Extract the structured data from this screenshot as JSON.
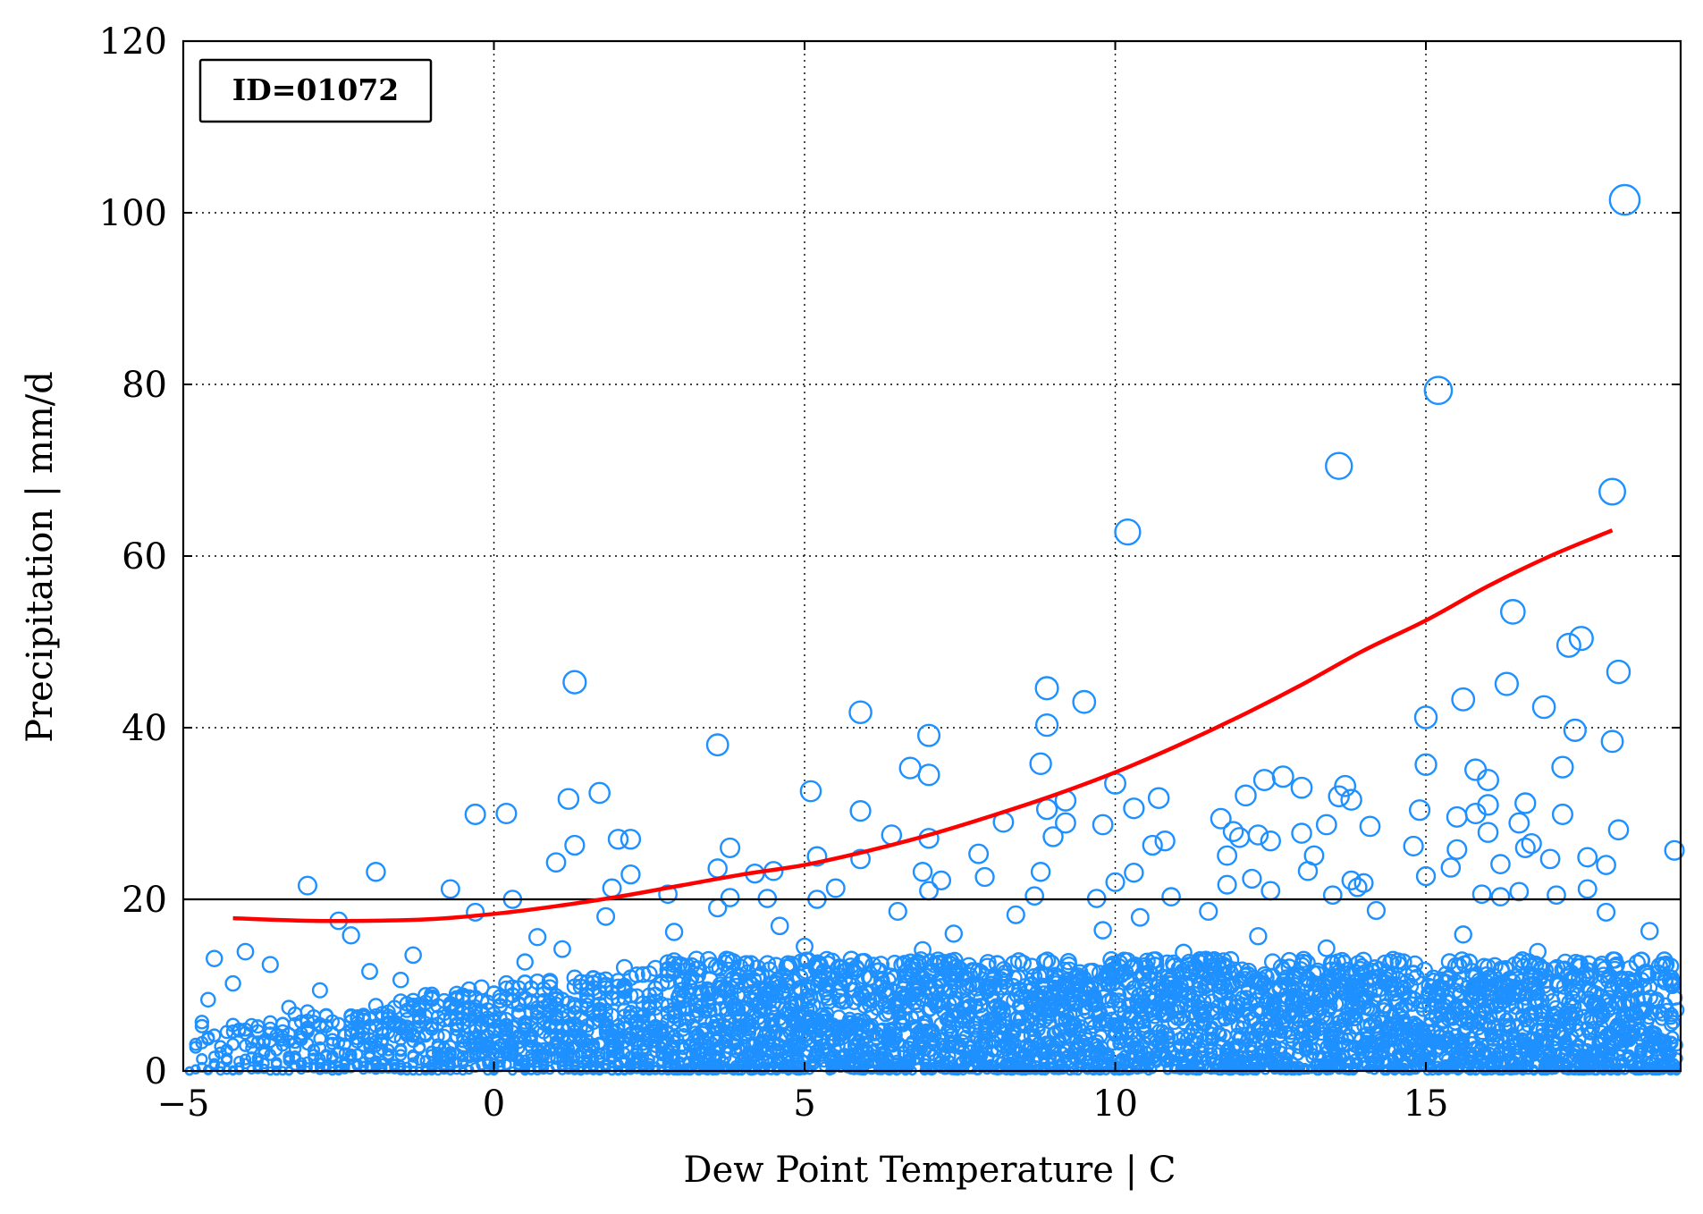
{
  "chart_data": {
    "type": "scatter",
    "title": "",
    "xlabel": "Dew Point Temperature | C",
    "ylabel": "Precipitation | mm/d",
    "xlim": [
      -5,
      19.1
    ],
    "ylim": [
      0,
      120
    ],
    "xticks": [
      -5,
      0,
      5,
      10,
      15
    ],
    "yticks": [
      0,
      20,
      40,
      60,
      80,
      100,
      120
    ],
    "x_tick_labels": [
      "−5",
      "0",
      "5",
      "10",
      "15"
    ],
    "y_tick_labels": [
      "0",
      "20",
      "40",
      "60",
      "80",
      "100",
      "120"
    ],
    "grid": true,
    "annotation": "ID=01072",
    "annotation_position": "top-left",
    "threshold_line": {
      "y": 20,
      "color": "#000000"
    },
    "marker_color": "#1E90FF",
    "fit_color": "#FF0000",
    "fit_curve": {
      "x": [
        -4.2,
        -3,
        -2,
        -1,
        0,
        1,
        2,
        3,
        4,
        5,
        6,
        7,
        8,
        9,
        10,
        11,
        12,
        13,
        14,
        15,
        16,
        17,
        18
      ],
      "y": [
        17.8,
        17.5,
        17.5,
        17.7,
        18.3,
        19.2,
        20.3,
        21.6,
        22.9,
        24.0,
        25.6,
        27.5,
        29.7,
        32.1,
        34.8,
        37.9,
        41.3,
        45.0,
        49.0,
        52.5,
        56.5,
        60.0,
        63.0
      ]
    },
    "series": [
      {
        "name": "",
        "points": [
          [
            18.2,
            101.5
          ],
          [
            15.2,
            79.3
          ],
          [
            13.6,
            70.5
          ],
          [
            18.0,
            67.5
          ],
          [
            10.2,
            62.8
          ],
          [
            16.4,
            53.5
          ],
          [
            17.5,
            50.4
          ],
          [
            17.3,
            49.6
          ],
          [
            18.1,
            46.5
          ],
          [
            1.3,
            45.3
          ],
          [
            16.3,
            45.1
          ],
          [
            8.9,
            44.6
          ],
          [
            15.6,
            43.3
          ],
          [
            9.5,
            43.0
          ],
          [
            16.9,
            42.4
          ],
          [
            5.9,
            41.8
          ],
          [
            15.0,
            41.2
          ],
          [
            8.9,
            40.3
          ],
          [
            17.4,
            39.7
          ],
          [
            7.0,
            39.1
          ],
          [
            18.0,
            38.4
          ],
          [
            3.6,
            38.0
          ],
          [
            8.8,
            35.8
          ],
          [
            6.7,
            35.3
          ],
          [
            15.0,
            35.7
          ],
          [
            17.2,
            35.4
          ],
          [
            15.8,
            35.1
          ],
          [
            7.0,
            34.5
          ],
          [
            12.7,
            34.3
          ],
          [
            16.0,
            33.9
          ],
          [
            12.4,
            33.9
          ],
          [
            13.7,
            33.2
          ],
          [
            10.0,
            33.5
          ],
          [
            5.1,
            32.6
          ],
          [
            13.0,
            33.0
          ],
          [
            1.7,
            32.4
          ],
          [
            12.1,
            32.1
          ],
          [
            10.7,
            31.8
          ],
          [
            1.2,
            31.7
          ],
          [
            13.6,
            32.0
          ],
          [
            13.8,
            31.6
          ],
          [
            9.2,
            31.5
          ],
          [
            16.6,
            31.2
          ],
          [
            16.0,
            31.0
          ],
          [
            10.3,
            30.6
          ],
          [
            8.9,
            30.5
          ],
          [
            15.8,
            30.0
          ],
          [
            5.9,
            30.3
          ],
          [
            14.9,
            30.4
          ],
          [
            0.2,
            30.0
          ],
          [
            -0.3,
            29.9
          ],
          [
            15.5,
            29.6
          ],
          [
            17.2,
            29.9
          ],
          [
            11.7,
            29.4
          ],
          [
            9.2,
            28.9
          ],
          [
            16.5,
            28.9
          ],
          [
            8.2,
            29.0
          ],
          [
            13.4,
            28.7
          ],
          [
            9.8,
            28.7
          ],
          [
            14.1,
            28.5
          ],
          [
            11.9,
            27.9
          ],
          [
            16.0,
            27.8
          ],
          [
            18.1,
            28.1
          ],
          [
            12.3,
            27.5
          ],
          [
            6.4,
            27.5
          ],
          [
            12.0,
            27.2
          ],
          [
            13.0,
            27.7
          ],
          [
            9.0,
            27.3
          ],
          [
            7.0,
            27.1
          ],
          [
            10.8,
            26.8
          ],
          [
            2.2,
            27.0
          ],
          [
            2.0,
            27.0
          ],
          [
            16.7,
            26.5
          ],
          [
            1.3,
            26.3
          ],
          [
            3.8,
            26.0
          ],
          [
            14.8,
            26.2
          ],
          [
            16.6,
            26.0
          ],
          [
            12.5,
            26.8
          ],
          [
            10.6,
            26.3
          ],
          [
            15.5,
            25.8
          ],
          [
            19.0,
            25.7
          ],
          [
            7.8,
            25.3
          ],
          [
            13.2,
            25.1
          ],
          [
            17.6,
            24.9
          ],
          [
            5.2,
            25.0
          ],
          [
            11.8,
            25.1
          ],
          [
            5.9,
            24.7
          ],
          [
            17.0,
            24.7
          ],
          [
            1.0,
            24.3
          ],
          [
            16.2,
            24.1
          ],
          [
            15.4,
            23.7
          ],
          [
            17.9,
            24.0
          ],
          [
            3.6,
            23.6
          ],
          [
            4.5,
            23.3
          ],
          [
            -1.9,
            23.2
          ],
          [
            6.9,
            23.2
          ],
          [
            10.3,
            23.1
          ],
          [
            4.2,
            23.0
          ],
          [
            8.8,
            23.2
          ],
          [
            13.1,
            23.3
          ],
          [
            2.2,
            22.9
          ],
          [
            15.0,
            22.7
          ],
          [
            7.9,
            22.6
          ],
          [
            13.8,
            22.2
          ],
          [
            12.2,
            22.4
          ],
          [
            7.2,
            22.2
          ],
          [
            10.0,
            22.0
          ],
          [
            14.0,
            21.9
          ],
          [
            11.8,
            21.7
          ],
          [
            -3.0,
            21.6
          ],
          [
            1.9,
            21.3
          ],
          [
            -0.7,
            21.2
          ],
          [
            17.6,
            21.2
          ],
          [
            5.5,
            21.3
          ],
          [
            13.9,
            21.4
          ],
          [
            7.0,
            21.0
          ],
          [
            16.5,
            20.9
          ],
          [
            12.5,
            21.0
          ],
          [
            2.8,
            20.6
          ],
          [
            15.9,
            20.6
          ],
          [
            17.1,
            20.5
          ],
          [
            3.8,
            20.2
          ],
          [
            8.7,
            20.4
          ],
          [
            10.9,
            20.3
          ],
          [
            4.4,
            20.1
          ],
          [
            13.5,
            20.5
          ],
          [
            16.2,
            20.3
          ],
          [
            5.2,
            20.0
          ],
          [
            0.3,
            20.0
          ],
          [
            9.7,
            20.1
          ],
          [
            -2.5,
            17.5
          ],
          [
            -0.3,
            18.5
          ],
          [
            3.6,
            19.0
          ],
          [
            6.5,
            18.6
          ],
          [
            8.4,
            18.2
          ],
          [
            11.5,
            18.6
          ],
          [
            14.2,
            18.7
          ],
          [
            17.9,
            18.5
          ],
          [
            1.8,
            18.0
          ],
          [
            10.4,
            17.9
          ],
          [
            -2.3,
            15.8
          ],
          [
            0.7,
            15.6
          ],
          [
            2.9,
            16.2
          ],
          [
            4.6,
            16.9
          ],
          [
            7.4,
            16.0
          ],
          [
            9.8,
            16.4
          ],
          [
            12.3,
            15.7
          ],
          [
            15.6,
            15.9
          ],
          [
            18.6,
            16.3
          ],
          [
            -4.0,
            13.9
          ],
          [
            -1.3,
            13.5
          ],
          [
            1.1,
            14.2
          ],
          [
            5.0,
            14.5
          ],
          [
            6.9,
            14.1
          ],
          [
            11.1,
            13.8
          ],
          [
            13.4,
            14.3
          ],
          [
            16.8,
            13.9
          ],
          [
            -3.6,
            12.4
          ],
          [
            -4.5,
            13.1
          ],
          [
            0.5,
            12.7
          ],
          [
            3.5,
            12.3
          ],
          [
            8.1,
            12.5
          ],
          [
            12.8,
            12.1
          ],
          [
            18.4,
            12.6
          ],
          [
            -2.0,
            11.6
          ],
          [
            2.3,
            11.2
          ],
          [
            6.2,
            11.7
          ],
          [
            9.4,
            11.1
          ],
          [
            14.8,
            11.4
          ],
          [
            17.2,
            11.8
          ],
          [
            -4.2,
            10.2
          ],
          [
            -1.5,
            10.6
          ],
          [
            1.5,
            10.3
          ],
          [
            4.1,
            10.5
          ],
          [
            7.7,
            10.1
          ],
          [
            10.9,
            10.7
          ],
          [
            13.7,
            10.4
          ],
          [
            16.1,
            10.0
          ],
          [
            -2.8,
            9.4
          ],
          [
            0.2,
            9.6
          ],
          [
            3.1,
            9.2
          ],
          [
            5.6,
            9.7
          ],
          [
            8.6,
            9.3
          ],
          [
            11.7,
            9.8
          ],
          [
            15.2,
            9.1
          ],
          [
            18.0,
            9.5
          ],
          [
            -4.6,
            8.3
          ],
          [
            -1.0,
            8.6
          ],
          [
            2.6,
            8.1
          ],
          [
            6.6,
            8.7
          ],
          [
            9.9,
            8.2
          ],
          [
            12.9,
            8.5
          ],
          [
            16.5,
            8.8
          ],
          [
            -3.3,
            7.4
          ],
          [
            0.9,
            7.7
          ],
          [
            4.3,
            7.3
          ],
          [
            7.1,
            7.9
          ],
          [
            10.5,
            7.5
          ],
          [
            14.1,
            7.2
          ],
          [
            17.7,
            7.6
          ],
          [
            -2.1,
            6.5
          ],
          [
            1.3,
            6.8
          ],
          [
            5.3,
            6.2
          ],
          [
            8.2,
            6.9
          ],
          [
            11.4,
            6.4
          ],
          [
            15.5,
            6.6
          ],
          [
            18.8,
            6.1
          ],
          [
            -4.7,
            5.7
          ],
          [
            -0.6,
            5.3
          ],
          [
            3.4,
            5.8
          ],
          [
            6.8,
            5.1
          ],
          [
            9.6,
            5.6
          ],
          [
            13.2,
            5.4
          ],
          [
            16.7,
            5.9
          ],
          [
            -3.0,
            4.6
          ],
          [
            0.4,
            4.1
          ],
          [
            2.0,
            4.8
          ],
          [
            4.9,
            4.3
          ],
          [
            7.9,
            4.7
          ],
          [
            11.2,
            4.2
          ],
          [
            14.6,
            4.9
          ],
          [
            18.2,
            4.4
          ],
          [
            -1.8,
            3.6
          ],
          [
            1.7,
            3.2
          ],
          [
            5.8,
            3.8
          ],
          [
            9.1,
            3.3
          ],
          [
            12.4,
            3.7
          ],
          [
            15.9,
            3.1
          ],
          [
            -4.3,
            2.4
          ],
          [
            -0.2,
            2.8
          ],
          [
            3.9,
            2.2
          ],
          [
            7.5,
            2.6
          ],
          [
            10.8,
            2.1
          ],
          [
            13.9,
            2.7
          ],
          [
            17.4,
            2.3
          ],
          [
            -2.6,
            1.5
          ],
          [
            0.8,
            1.8
          ],
          [
            4.6,
            1.2
          ],
          [
            8.5,
            1.6
          ],
          [
            12.0,
            1.1
          ],
          [
            15.3,
            1.7
          ],
          [
            18.9,
            1.4
          ],
          [
            -3.8,
            0.6
          ],
          [
            -0.9,
            0.9
          ],
          [
            2.5,
            0.4
          ],
          [
            6.3,
            0.8
          ],
          [
            10.1,
            0.5
          ],
          [
            13.6,
            0.7
          ],
          [
            16.9,
            0.3
          ]
        ]
      }
    ]
  }
}
